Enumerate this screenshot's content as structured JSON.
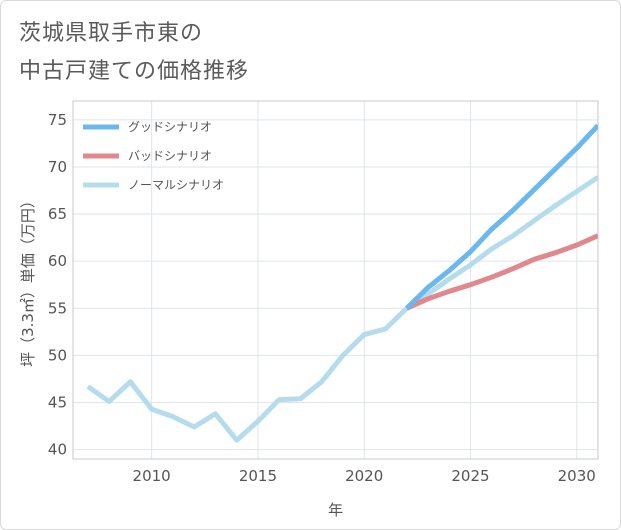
{
  "title": {
    "line1": "茨城県取手市東の",
    "line2": "中古戸建ての価格推移"
  },
  "chart_data": {
    "type": "line",
    "xlabel": "年",
    "ylabel": "坪（3.3㎡）単価（万円）",
    "xlim": [
      2006.3,
      2031
    ],
    "ylim": [
      39,
      77
    ],
    "xticks": [
      2010,
      2015,
      2020,
      2025,
      2030
    ],
    "yticks": [
      40,
      45,
      50,
      55,
      60,
      65,
      70,
      75
    ],
    "grid": true,
    "legend_position": "top-left",
    "series": [
      {
        "name": "グッドシナリオ",
        "color": "#6bb8ee",
        "x": [
          2022,
          2023,
          2024,
          2025,
          2026,
          2027,
          2028,
          2029,
          2030,
          2031
        ],
        "y": [
          55.0,
          57.2,
          59.0,
          61.0,
          63.4,
          65.4,
          67.6,
          69.8,
          72.0,
          74.4
        ]
      },
      {
        "name": "バッドシナリオ",
        "color": "#e0888d",
        "x": [
          2022,
          2023,
          2024,
          2025,
          2026,
          2027,
          2028,
          2029,
          2030,
          2031
        ],
        "y": [
          55.0,
          56.0,
          56.8,
          57.5,
          58.3,
          59.2,
          60.2,
          60.9,
          61.7,
          62.7
        ]
      },
      {
        "name": "ノーマルシナリオ",
        "color": "#b5dced",
        "x": [
          2007,
          2008,
          2009,
          2010,
          2011,
          2012,
          2013,
          2014,
          2015,
          2016,
          2017,
          2018,
          2019,
          2020,
          2021,
          2022,
          2023,
          2024,
          2025,
          2026,
          2027,
          2028,
          2029,
          2030,
          2031
        ],
        "y": [
          46.7,
          45.1,
          47.2,
          44.3,
          43.5,
          42.4,
          43.8,
          41.0,
          43.0,
          45.3,
          45.4,
          47.2,
          50.0,
          52.2,
          52.8,
          55.0,
          56.5,
          58.1,
          59.6,
          61.3,
          62.7,
          64.3,
          65.9,
          67.4,
          68.9
        ]
      }
    ]
  }
}
